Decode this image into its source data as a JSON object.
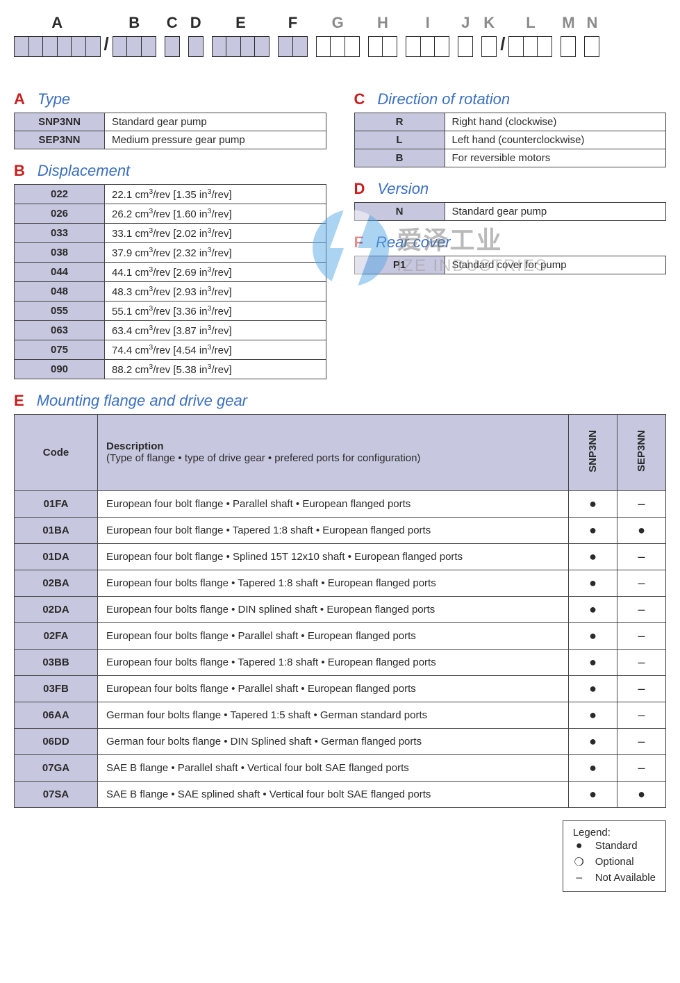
{
  "codebar": [
    {
      "letter": "A",
      "boxes": 6,
      "dim": false,
      "fill": true
    },
    {
      "slash": true
    },
    {
      "letter": "B",
      "boxes": 3,
      "dim": false,
      "fill": true
    },
    {
      "gap": true
    },
    {
      "letter": "C",
      "boxes": 1,
      "dim": false,
      "fill": true
    },
    {
      "gap": true
    },
    {
      "letter": "D",
      "boxes": 1,
      "dim": false,
      "fill": true
    },
    {
      "gap": true
    },
    {
      "letter": "E",
      "boxes": 4,
      "dim": false,
      "fill": true
    },
    {
      "gap": true
    },
    {
      "letter": "F",
      "boxes": 2,
      "dim": false,
      "fill": true
    },
    {
      "gap": true
    },
    {
      "letter": "G",
      "boxes": 3,
      "dim": true,
      "fill": false
    },
    {
      "gap": true
    },
    {
      "letter": "H",
      "boxes": 2,
      "dim": true,
      "fill": false
    },
    {
      "gap": true
    },
    {
      "letter": "I",
      "boxes": 3,
      "dim": true,
      "fill": false
    },
    {
      "gap": true
    },
    {
      "letter": "J",
      "boxes": 1,
      "dim": true,
      "fill": false
    },
    {
      "gap": true
    },
    {
      "letter": "K",
      "boxes": 1,
      "dim": true,
      "fill": false
    },
    {
      "slash": true
    },
    {
      "letter": "L",
      "boxes": 3,
      "dim": true,
      "fill": false
    },
    {
      "gap": true
    },
    {
      "letter": "M",
      "boxes": 1,
      "dim": true,
      "fill": false
    },
    {
      "gap": true
    },
    {
      "letter": "N",
      "boxes": 1,
      "dim": true,
      "fill": false
    }
  ],
  "sections": {
    "A": {
      "title": "Type",
      "rows": [
        [
          "SNP3NN",
          "Standard gear pump"
        ],
        [
          "SEP3NN",
          "Medium pressure gear pump"
        ]
      ]
    },
    "B": {
      "title": "Displacement",
      "rows": [
        [
          "022",
          "22.1 cm³/rev [1.35 in³/rev]"
        ],
        [
          "026",
          "26.2 cm³/rev [1.60 in³/rev]"
        ],
        [
          "033",
          "33.1 cm³/rev [2.02 in³/rev]"
        ],
        [
          "038",
          "37.9 cm³/rev [2.32 in³/rev]"
        ],
        [
          "044",
          "44.1 cm³/rev [2.69 in³/rev]"
        ],
        [
          "048",
          "48.3 cm³/rev [2.93 in³/rev]"
        ],
        [
          "055",
          "55.1 cm³/rev [3.36 in³/rev]"
        ],
        [
          "063",
          "63.4 cm³/rev [3.87 in³/rev]"
        ],
        [
          "075",
          "74.4 cm³/rev [4.54 in³/rev]"
        ],
        [
          "090",
          "88.2 cm³/rev [5.38 in³/rev]"
        ]
      ]
    },
    "C": {
      "title": "Direction of rotation",
      "rows": [
        [
          "R",
          "Right hand (clockwise)"
        ],
        [
          "L",
          "Left hand (counterclockwise)"
        ],
        [
          "B",
          "For reversible motors"
        ]
      ]
    },
    "D": {
      "title": "Version",
      "rows": [
        [
          "N",
          "Standard gear pump"
        ]
      ]
    },
    "F": {
      "title": "Rear cover",
      "rows": [
        [
          "P1",
          "Standard cover for pump"
        ]
      ]
    }
  },
  "tableE": {
    "letter": "E",
    "title": "Mounting flange and drive gear",
    "head_code": "Code",
    "head_desc": "Description",
    "head_desc_sub": "(Type of flange • type of drive gear • prefered ports for configuration)",
    "col1": "SNP3NN",
    "col2": "SEP3NN",
    "rows": [
      [
        "01FA",
        "European four bolt flange • Parallel shaft • European flanged ports",
        "●",
        "–"
      ],
      [
        "01BA",
        "European four bolt flange • Tapered 1:8 shaft • European flanged ports",
        "●",
        "●"
      ],
      [
        "01DA",
        "European four bolt flange • Splined 15T 12x10 shaft • European flanged ports",
        "●",
        "–"
      ],
      [
        "02BA",
        "European four bolts flange • Tapered 1:8 shaft • European flanged ports",
        "●",
        "–"
      ],
      [
        "02DA",
        "European four bolts flange • DIN splined shaft • European flanged ports",
        "●",
        "–"
      ],
      [
        "02FA",
        "European four bolts flange • Parallel shaft • European flanged ports",
        "●",
        "–"
      ],
      [
        "03BB",
        "European four bolts flange • Tapered 1:8 shaft • European flanged ports",
        "●",
        "–"
      ],
      [
        "03FB",
        "European four bolts flange • Parallel shaft • European flanged ports",
        "●",
        "–"
      ],
      [
        "06AA",
        "German four bolts flange • Tapered 1:5 shaft • German standard ports",
        "●",
        "–"
      ],
      [
        "06DD",
        "German four bolts flange • DIN Splined shaft • German flanged ports",
        "●",
        "–"
      ],
      [
        "07GA",
        "SAE B flange • Parallel shaft • Vertical four bolt SAE flanged ports",
        "●",
        "–"
      ],
      [
        "07SA",
        "SAE B flange • SAE splined shaft • Vertical four bolt SAE flanged ports",
        "●",
        "●"
      ]
    ]
  },
  "legend": {
    "title": "Legend:",
    "items": [
      [
        "●",
        "Standard"
      ],
      [
        "❍",
        "Optional"
      ],
      [
        "–",
        "Not Available"
      ]
    ]
  },
  "watermark": {
    "cn": "爱泽工业",
    "en": "IZE INDUSTRIES"
  },
  "colors": {
    "accent_red": "#c81e1e",
    "accent_blue": "#3b6fbf",
    "cell_bg": "#c7c7df",
    "border": "#444444"
  }
}
